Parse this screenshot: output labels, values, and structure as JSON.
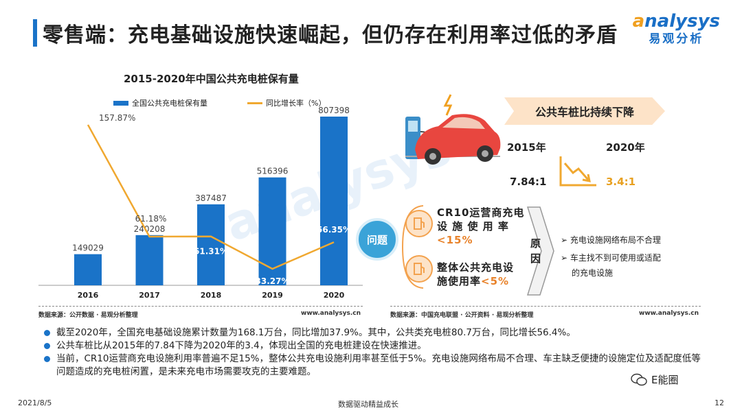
{
  "header": {
    "title": "零售端：充电基础设施快速崛起，但仍存在利用率过低的矛盾",
    "logo_en": "nalysys",
    "logo_en_initial": "a",
    "logo_cn": "易观分析"
  },
  "chart_data": {
    "type": "bar",
    "title": "2015-2020年中国公共充电桩保有量",
    "categories": [
      "2016",
      "2017",
      "2018",
      "2019",
      "2020"
    ],
    "series": [
      {
        "name": "全国公共充电桩保有量",
        "values": [
          149029,
          240208,
          387487,
          516396,
          807398
        ],
        "color": "#1a73c8"
      },
      {
        "name": "同比增长率（%）",
        "values": [
          157.87,
          61.18,
          61.31,
          33.27,
          56.35
        ],
        "color": "#f0a830"
      }
    ],
    "bar_labels": [
      "149029",
      "240208",
      "387487",
      "516396",
      "807398"
    ],
    "line_labels": [
      "157.87%",
      "61.18%",
      "61.31%",
      "33.27%",
      "56.35%"
    ],
    "grid": false
  },
  "left_panel": {
    "source": "数据来源：公开数据 · 易观分析整理",
    "site": "www.analysys.cn"
  },
  "right_panel": {
    "banner": "公共车桩比持续下降",
    "year_start": "2015年",
    "year_end": "2020年",
    "ratio_start": "7.84:1",
    "ratio_end": "3.4:1",
    "problem_label": "问题",
    "issues": [
      {
        "line1": "CR10运营商充电",
        "line2": "设 施 使 用 率",
        "highlight": "<15%"
      },
      {
        "line1": "整体公共充电设",
        "line2": "施使用率",
        "highlight": "<5%"
      }
    ],
    "cause_label": "原因",
    "causes": [
      "➢ 充电设施网络布局不合理",
      "➢ 车主找不到可使用或适配",
      "的充电设施"
    ],
    "source": "数据来源：中国充电联盟 · 公开资料 · 易观分析整理",
    "site": "www.analysys.cn",
    "colors": {
      "accent": "#f3a24e",
      "highlight": "#e8822a",
      "problem": "#3aa3d8"
    }
  },
  "bullets": [
    "截至2020年，全国充电基础设施累计数量为168.1万台，同比增加37.9%。其中，公共类充电桩80.7万台，同比增长56.4%。",
    "公共车桩比从2015年的7.84下降为2020年的3.4，体现出全国的充电桩建设在快速推进。",
    "当前，CR10运营商充电设施利用率普遍不足15%，整体公共充电设施利用率甚至低于5%。充电设施网络布局不合理、车主缺乏便捷的设施定位及适配度低等问题造成的充电桩闲置，是未来充电市场需要攻克的主要难题。"
  ],
  "footer": {
    "date": "2021/8/5",
    "slogan": "数据驱动精益成长",
    "page": "12",
    "wechat": "E能圈"
  }
}
